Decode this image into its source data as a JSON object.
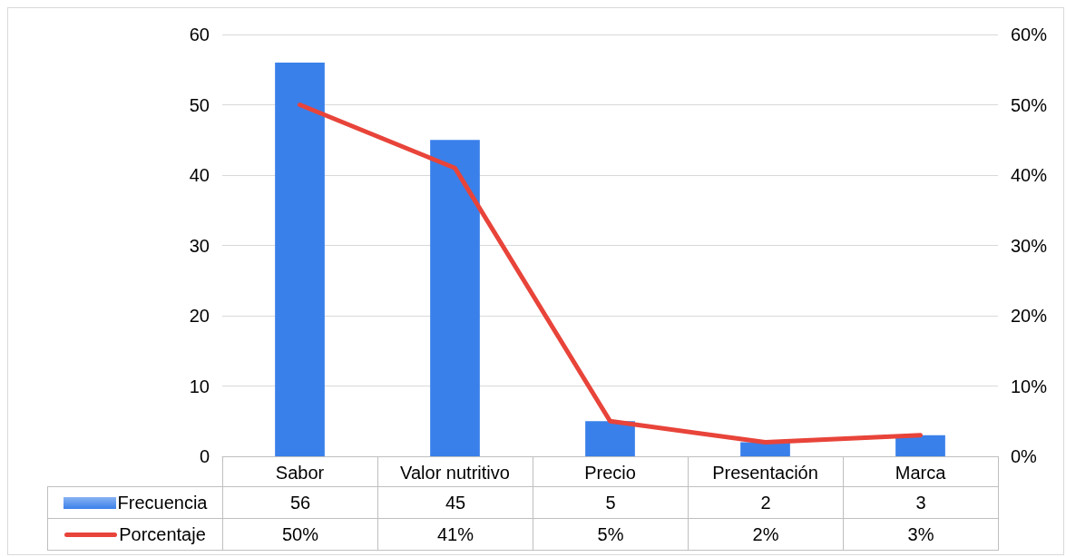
{
  "chart_data": {
    "type": "bar",
    "categories": [
      "Sabor",
      "Valor nutritivo",
      "Precio",
      "Presentación",
      "Marca"
    ],
    "series": [
      {
        "name": "Frecuencia",
        "color": "#3a80ea",
        "values": [
          56,
          45,
          5,
          2,
          3
        ],
        "value_labels": [
          "56",
          "45",
          "5",
          "2",
          "3"
        ]
      },
      {
        "name": "Porcentaje",
        "type": "line",
        "axis": "y2",
        "color": "#e8443a",
        "values": [
          50,
          41,
          5,
          2,
          3
        ],
        "value_labels": [
          "50%",
          "41%",
          "5%",
          "2%",
          "3%"
        ]
      }
    ],
    "ylim": [
      0,
      60
    ],
    "yticks": [
      0,
      10,
      20,
      30,
      40,
      50,
      60
    ],
    "y2lim": [
      0,
      60
    ],
    "y2ticks": [
      {
        "value": 0,
        "label": "0%"
      },
      {
        "value": 10,
        "label": "10%"
      },
      {
        "value": 20,
        "label": "20%"
      },
      {
        "value": 30,
        "label": "30%"
      },
      {
        "value": 40,
        "label": "40%"
      },
      {
        "value": 50,
        "label": "50%"
      },
      {
        "value": 60,
        "label": "60%"
      }
    ],
    "grid": "y",
    "legend": "bottom",
    "marker": "none",
    "line_style": "solid"
  }
}
